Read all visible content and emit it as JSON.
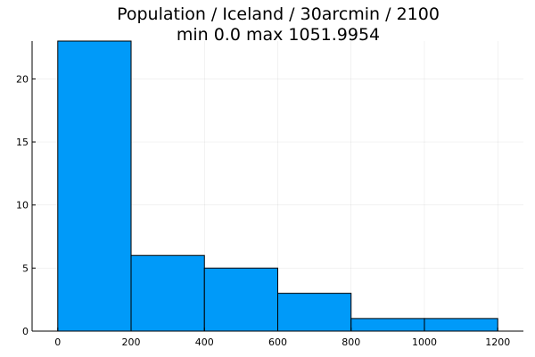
{
  "chart_data": {
    "type": "bar",
    "title": "Population / Iceland / 30arcmin / 2100",
    "subtitle": "min 0.0  max 1051.9954",
    "bin_edges": [
      0,
      200,
      400,
      600,
      800,
      1000,
      1200
    ],
    "values": [
      23,
      6,
      5,
      3,
      1,
      1
    ],
    "xlim": [
      -70,
      1270
    ],
    "ylim": [
      0,
      23
    ],
    "x_ticks": [
      0,
      200,
      400,
      600,
      800,
      1000,
      1200
    ],
    "y_ticks": [
      0,
      5,
      10,
      15,
      20
    ],
    "grid": true,
    "bar_color": "#009af9",
    "xlabel": "",
    "ylabel": ""
  }
}
